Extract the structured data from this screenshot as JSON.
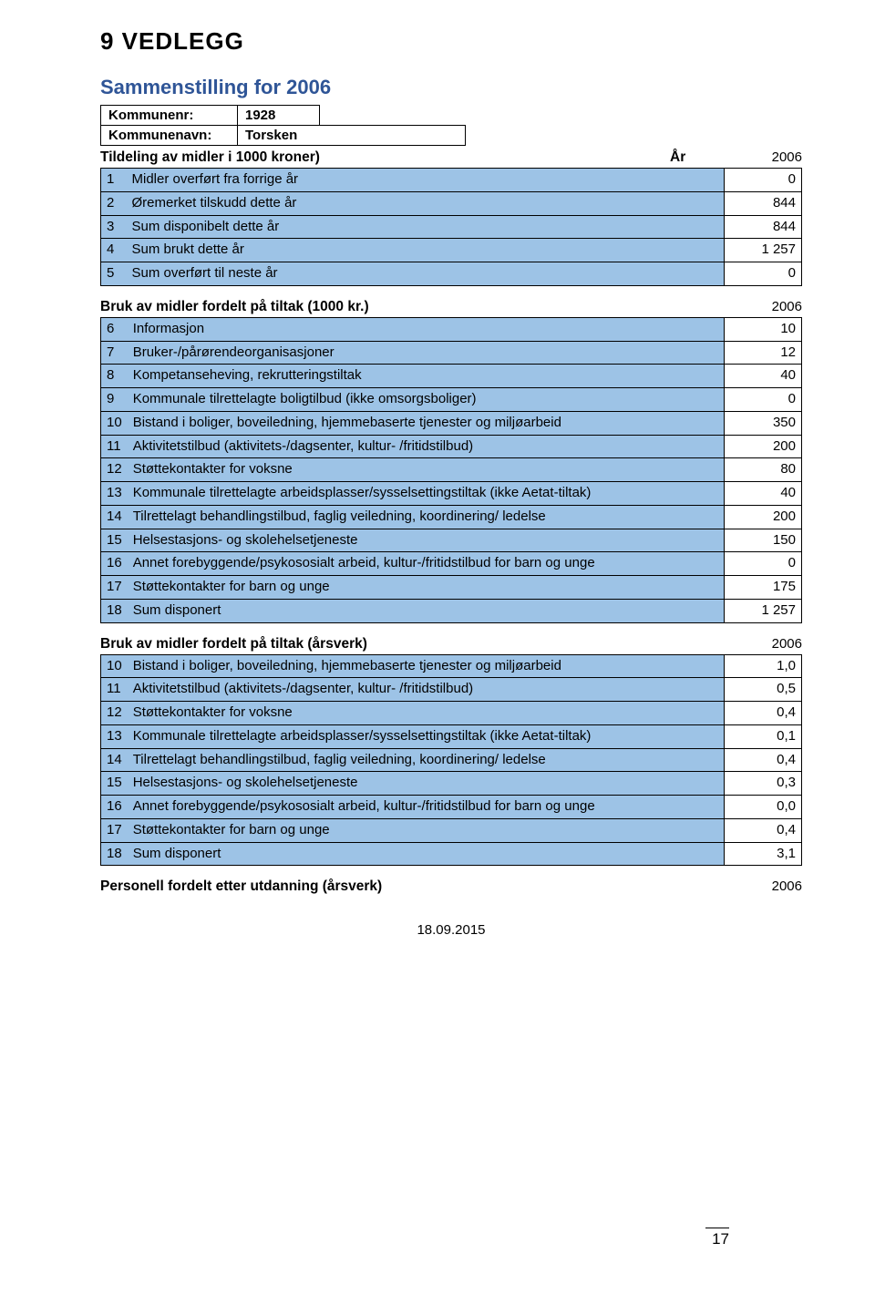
{
  "colors": {
    "heading_blue": "#2f5597",
    "row_blue": "#9dc3e6",
    "text": "#000000",
    "background": "#ffffff",
    "border": "#000000"
  },
  "fonts": {
    "heading_family": "Arial Black",
    "body_family": "Arial",
    "title_size_pt": 20,
    "subtitle_size_pt": 17,
    "body_size_pt": 11
  },
  "page": {
    "title": "9   VEDLEGG",
    "subtitle": "Sammenstilling for 2006",
    "footer_date": "18.09.2015",
    "page_number": "17"
  },
  "meta": {
    "kommunenr_label": "Kommunenr:",
    "kommunenr_value": "1928",
    "kommunenavn_label": "Kommunenavn:",
    "kommunenavn_value": "Torsken"
  },
  "section1": {
    "heading": "Tildeling av midler i 1000 kroner)",
    "ar_label": "År",
    "year": "2006",
    "rows": [
      {
        "n": "1",
        "label": "Midler overført fra forrige år",
        "val": "0"
      },
      {
        "n": "2",
        "label": "Øremerket tilskudd dette år",
        "val": "844"
      },
      {
        "n": "3",
        "label": "Sum disponibelt dette år",
        "val": "844"
      },
      {
        "n": "4",
        "label": "Sum brukt dette år",
        "val": "1 257"
      },
      {
        "n": "5",
        "label": "Sum overført til neste år",
        "val": "0"
      }
    ]
  },
  "section2": {
    "heading": "Bruk av midler fordelt på tiltak (1000 kr.)",
    "year": "2006",
    "rows": [
      {
        "n": "6",
        "label": "Informasjon",
        "val": "10"
      },
      {
        "n": "7",
        "label": "Bruker-/pårørendeorganisasjoner",
        "val": "12"
      },
      {
        "n": "8",
        "label": "Kompetanseheving, rekrutteringstiltak",
        "val": "40"
      },
      {
        "n": "9",
        "label": "Kommunale tilrettelagte boligtilbud (ikke omsorgsboliger)",
        "val": "0"
      },
      {
        "n": "10",
        "label": "Bistand i boliger, boveiledning, hjemmebaserte tjenester og miljøarbeid",
        "val": "350"
      },
      {
        "n": "11",
        "label": "Aktivitetstilbud (aktivitets-/dagsenter, kultur- /fritidstilbud)",
        "val": "200"
      },
      {
        "n": "12",
        "label": "Støttekontakter for voksne",
        "val": "80"
      },
      {
        "n": "13",
        "label": "Kommunale tilrettelagte arbeidsplasser/sysselsettingstiltak (ikke Aetat-tiltak)",
        "val": "40"
      },
      {
        "n": "14",
        "label": "Tilrettelagt behandlingstilbud, faglig veiledning, koordinering/ ledelse",
        "val": "200"
      },
      {
        "n": "15",
        "label": "Helsestasjons- og skolehelsetjeneste",
        "val": "150"
      },
      {
        "n": "16",
        "label": "Annet forebyggende/psykososialt arbeid,  kultur-/fritidstilbud for barn og unge",
        "val": "0"
      },
      {
        "n": "17",
        "label": "Støttekontakter for barn og unge",
        "val": "175"
      },
      {
        "n": "18",
        "label": "Sum disponert",
        "val": "1 257"
      }
    ]
  },
  "section3": {
    "heading": "Bruk av midler fordelt på tiltak (årsverk)",
    "year": "2006",
    "rows": [
      {
        "n": "10",
        "label": "Bistand i boliger, boveiledning, hjemmebaserte tjenester og miljøarbeid",
        "val": "1,0"
      },
      {
        "n": "11",
        "label": "Aktivitetstilbud (aktivitets-/dagsenter, kultur- /fritidstilbud)",
        "val": "0,5"
      },
      {
        "n": "12",
        "label": "Støttekontakter for voksne",
        "val": "0,4"
      },
      {
        "n": "13",
        "label": "Kommunale tilrettelagte arbeidsplasser/sysselsettingstiltak (ikke Aetat-tiltak)",
        "val": "0,1"
      },
      {
        "n": "14",
        "label": "Tilrettelagt behandlingstilbud, faglig veiledning, koordinering/ ledelse",
        "val": "0,4"
      },
      {
        "n": "15",
        "label": "Helsestasjons- og skolehelsetjeneste",
        "val": "0,3"
      },
      {
        "n": "16",
        "label": "Annet forebyggende/psykososialt arbeid,  kultur-/fritidstilbud for barn og unge",
        "val": "0,0"
      },
      {
        "n": "17",
        "label": "Støttekontakter for barn og unge",
        "val": "0,4"
      },
      {
        "n": "18",
        "label": "Sum disponert",
        "val": "3,1"
      }
    ]
  },
  "section4": {
    "heading": "Personell fordelt etter utdanning (årsverk)",
    "year": "2006"
  }
}
